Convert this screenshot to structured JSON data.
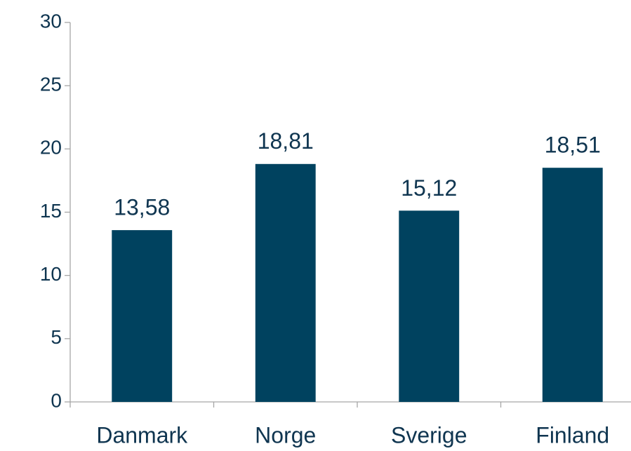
{
  "chart_data": {
    "type": "bar",
    "categories": [
      "Danmark",
      "Norge",
      "Sverige",
      "Finland"
    ],
    "values": [
      13.58,
      18.81,
      15.12,
      18.51
    ],
    "value_labels": [
      "13,58",
      "18,81",
      "15,12",
      "18,51"
    ],
    "color": "#00425f",
    "ylim": [
      0,
      30
    ],
    "yticks": [
      0,
      5,
      10,
      15,
      20,
      25,
      30
    ],
    "grid": false
  }
}
